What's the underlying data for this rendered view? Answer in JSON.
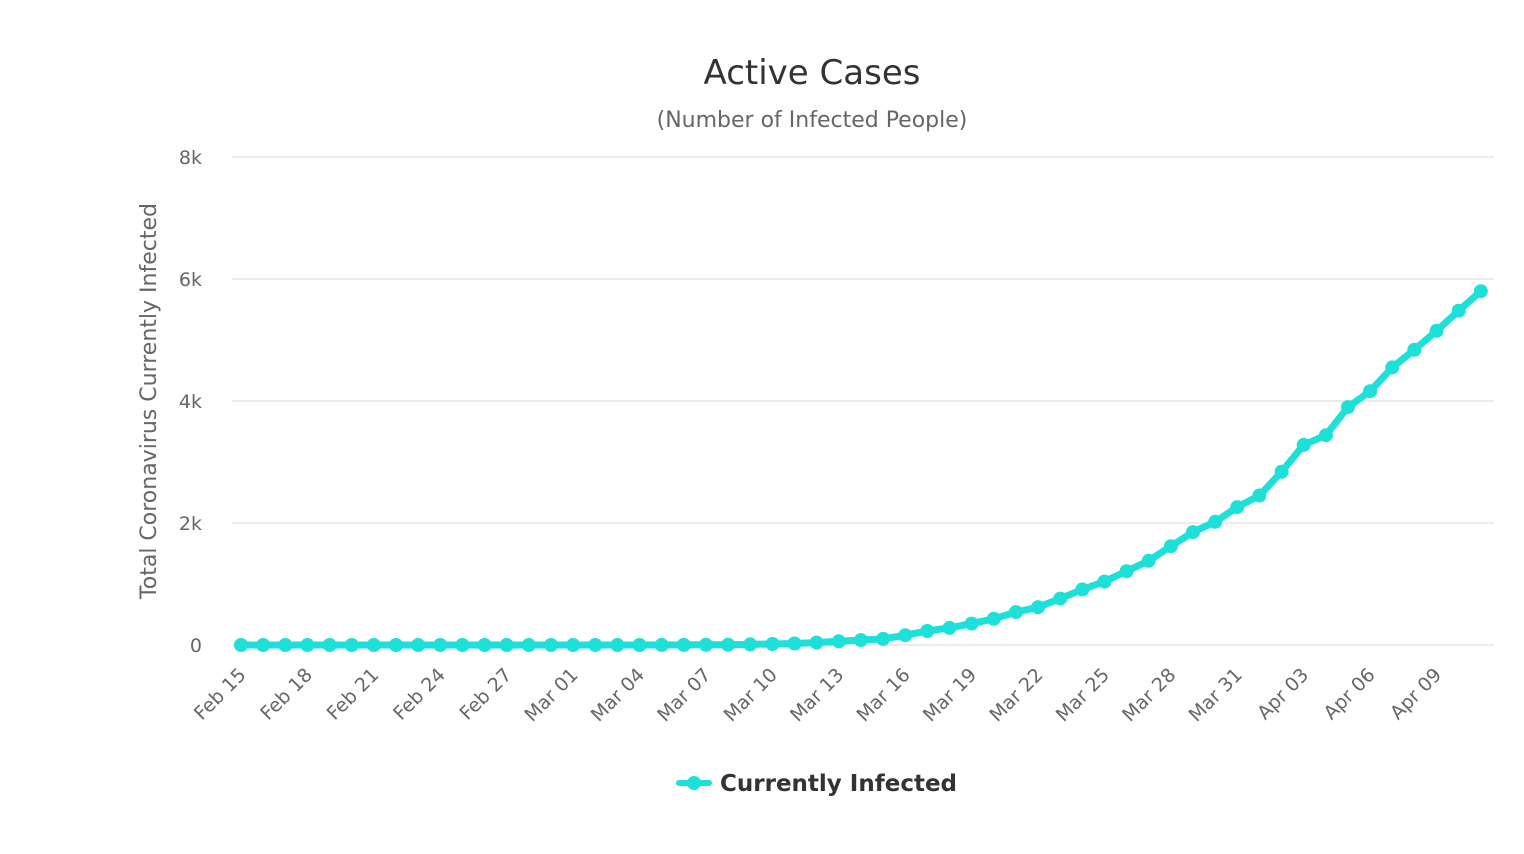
{
  "chart_data": {
    "type": "line",
    "title": "Active Cases",
    "subtitle": "(Number of Infected People)",
    "ylabel": "Total Coronavirus Currently Infected",
    "xlabel": "",
    "ylim": [
      0,
      8000
    ],
    "y_ticks": [
      {
        "value": 0,
        "label": "0"
      },
      {
        "value": 2000,
        "label": "2k"
      },
      {
        "value": 4000,
        "label": "4k"
      },
      {
        "value": 6000,
        "label": "6k"
      },
      {
        "value": 8000,
        "label": "8k"
      }
    ],
    "x_tick_labels": [
      "Feb 15",
      "Feb 18",
      "Feb 21",
      "Feb 24",
      "Feb 27",
      "Mar 01",
      "Mar 04",
      "Mar 07",
      "Mar 10",
      "Mar 13",
      "Mar 16",
      "Mar 19",
      "Mar 22",
      "Mar 25",
      "Mar 28",
      "Mar 31",
      "Apr 03",
      "Apr 06",
      "Apr 09"
    ],
    "x_tick_every": 3,
    "grid": true,
    "legend_position": "bottom-center",
    "color": "#1de0d8",
    "categories": [
      "Feb 15",
      "Feb 16",
      "Feb 17",
      "Feb 18",
      "Feb 19",
      "Feb 20",
      "Feb 21",
      "Feb 22",
      "Feb 23",
      "Feb 24",
      "Feb 25",
      "Feb 26",
      "Feb 27",
      "Feb 28",
      "Feb 29",
      "Mar 01",
      "Mar 02",
      "Mar 03",
      "Mar 04",
      "Mar 05",
      "Mar 06",
      "Mar 07",
      "Mar 08",
      "Mar 09",
      "Mar 10",
      "Mar 11",
      "Mar 12",
      "Mar 13",
      "Mar 14",
      "Mar 15",
      "Mar 16",
      "Mar 17",
      "Mar 18",
      "Mar 19",
      "Mar 20",
      "Mar 21",
      "Mar 22",
      "Mar 23",
      "Mar 24",
      "Mar 25",
      "Mar 26",
      "Mar 27",
      "Mar 28",
      "Mar 29",
      "Mar 30",
      "Mar 31",
      "Apr 01",
      "Apr 02",
      "Apr 03",
      "Apr 04",
      "Apr 05",
      "Apr 06",
      "Apr 07",
      "Apr 08",
      "Apr 09",
      "Apr 10",
      "Apr 11"
    ],
    "series": [
      {
        "name": "Currently Infected",
        "values": [
          0,
          0,
          0,
          0,
          0,
          0,
          0,
          0,
          0,
          0,
          0,
          0,
          0,
          0,
          0,
          0,
          0,
          0,
          0,
          1,
          2,
          3,
          5,
          10,
          17,
          25,
          40,
          60,
          80,
          100,
          160,
          230,
          280,
          350,
          430,
          540,
          620,
          760,
          910,
          1040,
          1210,
          1380,
          1620,
          1850,
          2020,
          2260,
          2450,
          2840,
          3280,
          3440,
          3900,
          4160,
          4550,
          4840,
          5150,
          5480,
          5800
        ]
      }
    ]
  }
}
